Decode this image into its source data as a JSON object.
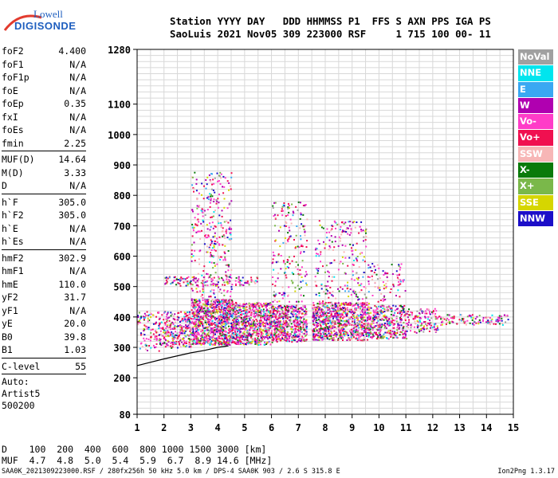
{
  "logo": {
    "line1": "Lowell",
    "line2": "DIGISONDE"
  },
  "header": {
    "line1": "Station YYYY DAY   DDD HHMMSS P1  FFS S AXN PPS IGA PS",
    "line2": "SaoLuis 2021 Nov05 309 223000 RSF     1 715 100 00- 11"
  },
  "params": {
    "groups": [
      [
        [
          "foF2",
          "4.400"
        ],
        [
          "foF1",
          "N/A"
        ],
        [
          "foF1p",
          "N/A"
        ],
        [
          "foE",
          "N/A"
        ],
        [
          "foEp",
          "0.35"
        ],
        [
          "fxI",
          "N/A"
        ],
        [
          "foEs",
          "N/A"
        ],
        [
          "fmin",
          "2.25"
        ]
      ],
      [
        [
          "MUF(D)",
          "14.64"
        ],
        [
          "M(D)",
          "3.33"
        ],
        [
          "D",
          "N/A"
        ]
      ],
      [
        [
          "h`F",
          "305.0"
        ],
        [
          "h`F2",
          "305.0"
        ],
        [
          "h`E",
          "N/A"
        ],
        [
          "h`Es",
          "N/A"
        ]
      ],
      [
        [
          "hmF2",
          "302.9"
        ],
        [
          "hmF1",
          "N/A"
        ],
        [
          "hmE",
          "110.0"
        ],
        [
          "yF2",
          "31.7"
        ],
        [
          "yF1",
          "N/A"
        ],
        [
          "yE",
          "20.0"
        ],
        [
          "B0",
          "39.8"
        ],
        [
          "B1",
          "1.03"
        ]
      ],
      [
        [
          "C-level",
          "55"
        ]
      ]
    ],
    "footer": [
      "Auto:",
      "Artist5",
      "500200"
    ]
  },
  "legend": [
    {
      "label": "NoVal",
      "color": "#a0a0a0"
    },
    {
      "label": "NNE",
      "color": "#00e5ee"
    },
    {
      "label": "E",
      "color": "#3aa8f2"
    },
    {
      "label": "W",
      "color": "#b000b0"
    },
    {
      "label": "Vo-",
      "color": "#ff3cc8"
    },
    {
      "label": "Vo+",
      "color": "#f01050"
    },
    {
      "label": "SSW",
      "color": "#f7b6b6"
    },
    {
      "label": "X-",
      "color": "#0a7a0a"
    },
    {
      "label": "X+",
      "color": "#7ab84a"
    },
    {
      "label": "SSE",
      "color": "#d6d600"
    },
    {
      "label": "NNW",
      "color": "#1c0ec8"
    }
  ],
  "muf_table": {
    "line1": "D    100  200  400  600  800 1000 1500 3000 [km]",
    "line2": "MUF  4.7  4.8  5.0  5.4  5.9  6.7  8.9 14.6 [MHz]"
  },
  "footer": {
    "left": "SAA0K_2021309223000.RSF / 280fx256h 50 kHz 5.0 km / DPS-4 SAA0K 903 / 2.6 S 315.8 E",
    "right": "Ion2Png 1.3.17"
  },
  "chart_data": {
    "type": "scatter",
    "x_axis": {
      "range": [
        1,
        15
      ],
      "ticks": [
        1,
        2,
        3,
        4,
        5,
        6,
        7,
        8,
        9,
        10,
        11,
        12,
        13,
        14,
        15
      ]
    },
    "y_axis": {
      "range": [
        80,
        1280
      ],
      "ticks": [
        80,
        200,
        300,
        400,
        500,
        600,
        700,
        800,
        900,
        1000,
        1100,
        1280
      ]
    },
    "grid": true,
    "echo_bands": [
      {
        "f": [
          1.0,
          2.0
        ],
        "h": [
          290,
          420
        ],
        "d": 0.5
      },
      {
        "f": [
          2.0,
          3.0
        ],
        "h": [
          300,
          420
        ],
        "d": 0.9
      },
      {
        "f": [
          3.0,
          4.6
        ],
        "h": [
          310,
          460
        ],
        "d": 1.8
      },
      {
        "f": [
          4.6,
          6.0
        ],
        "h": [
          310,
          450
        ],
        "d": 1.6
      },
      {
        "f": [
          6.0,
          7.3
        ],
        "h": [
          320,
          440
        ],
        "d": 1.6
      },
      {
        "f": [
          7.5,
          9.6
        ],
        "h": [
          325,
          450
        ],
        "d": 1.5
      },
      {
        "f": [
          9.6,
          11.0
        ],
        "h": [
          330,
          440
        ],
        "d": 1.0
      },
      {
        "f": [
          11.0,
          12.2
        ],
        "h": [
          350,
          430
        ],
        "d": 0.6
      },
      {
        "f": [
          12.2,
          14.8
        ],
        "h": [
          375,
          410
        ],
        "d": 0.6
      },
      {
        "f": [
          3.0,
          4.5
        ],
        "h": [
          450,
          880
        ],
        "d": 0.25
      },
      {
        "f": [
          6.0,
          7.3
        ],
        "h": [
          450,
          780
        ],
        "d": 0.2
      },
      {
        "f": [
          7.6,
          9.5
        ],
        "h": [
          450,
          720
        ],
        "d": 0.2
      },
      {
        "f": [
          2.0,
          5.5
        ],
        "h": [
          505,
          535
        ],
        "d": 0.6
      },
      {
        "f": [
          9.5,
          11.0
        ],
        "h": [
          450,
          580
        ],
        "d": 0.2
      }
    ],
    "profile_curve": {
      "f": [
        1.0,
        2.0,
        3.0,
        3.5,
        4.0,
        4.4
      ],
      "h": [
        240,
        262,
        282,
        290,
        300,
        305
      ]
    }
  }
}
